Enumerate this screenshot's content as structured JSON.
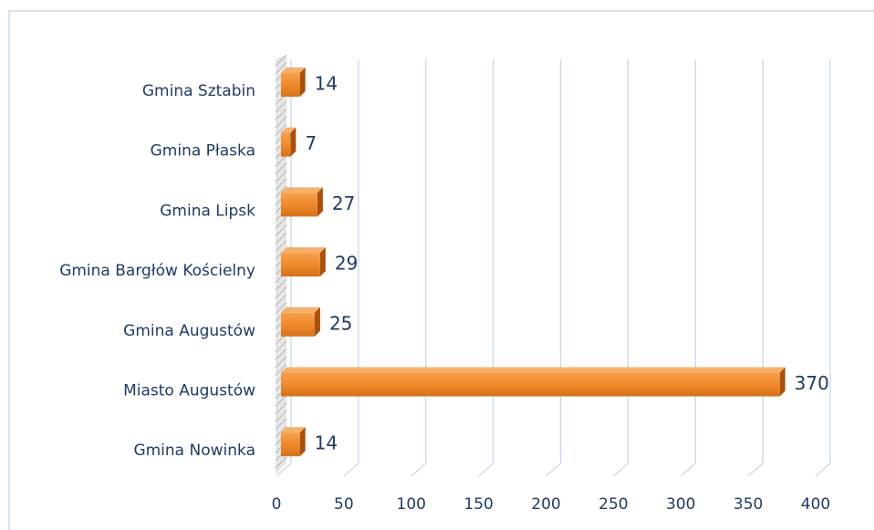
{
  "chart_data": {
    "type": "bar",
    "orientation": "horizontal",
    "categories": [
      "Gmina Sztabin",
      "Gmina Płaska",
      "Gmina Lipsk",
      "Gmina Bargłów Kościelny",
      "Gmina Augustów",
      "Miasto Augustów",
      "Gmina Nowinka"
    ],
    "values": [
      14,
      7,
      27,
      29,
      25,
      370,
      14
    ],
    "color": "#f08a2c",
    "xlim": [
      0,
      400
    ],
    "xticks": [
      0,
      50,
      100,
      150,
      200,
      250,
      300,
      350,
      400
    ],
    "grid": true
  }
}
